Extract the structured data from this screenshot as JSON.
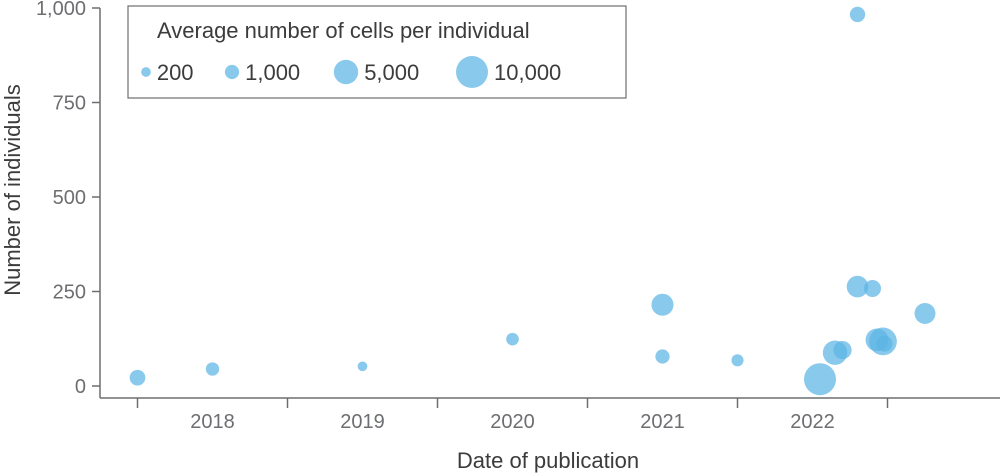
{
  "chart_data": {
    "type": "scatter",
    "title": "",
    "xlabel": "Date of publication",
    "ylabel": "Number of individuals",
    "xlim": [
      2017.25,
      2023.25
    ],
    "ylim": [
      0,
      1000
    ],
    "x_ticks": [
      "2018",
      "2019",
      "2020",
      "2021",
      "2022"
    ],
    "y_ticks": [
      "0",
      "250",
      "500",
      "750",
      "1,000"
    ],
    "y_tick_values": [
      0,
      250,
      500,
      750,
      1000
    ],
    "grid": false,
    "legend": {
      "title": "Average number of cells per individual",
      "placement": "top-left",
      "entries": [
        {
          "label": "200",
          "size": 200
        },
        {
          "label": "1,000",
          "size": 1000
        },
        {
          "label": "5,000",
          "size": 5000
        },
        {
          "label": "10,000",
          "size": 10000
        }
      ]
    },
    "color": "#5bb4e5",
    "points": [
      {
        "x": 2017.5,
        "y": 22,
        "size": 1400
      },
      {
        "x": 2018.0,
        "y": 45,
        "size": 800
      },
      {
        "x": 2019.0,
        "y": 52,
        "size": 200
      },
      {
        "x": 2020.0,
        "y": 124,
        "size": 650
      },
      {
        "x": 2021.0,
        "y": 215,
        "size": 3800
      },
      {
        "x": 2021.0,
        "y": 78,
        "size": 1000
      },
      {
        "x": 2021.5,
        "y": 68,
        "size": 550
      },
      {
        "x": 2022.05,
        "y": 18,
        "size": 10000
      },
      {
        "x": 2022.15,
        "y": 88,
        "size": 5000
      },
      {
        "x": 2022.2,
        "y": 95,
        "size": 2200
      },
      {
        "x": 2022.3,
        "y": 983,
        "size": 1300
      },
      {
        "x": 2022.3,
        "y": 263,
        "size": 3600
      },
      {
        "x": 2022.4,
        "y": 258,
        "size": 1800
      },
      {
        "x": 2022.43,
        "y": 122,
        "size": 4200
      },
      {
        "x": 2022.47,
        "y": 118,
        "size": 7000
      },
      {
        "x": 2022.48,
        "y": 112,
        "size": 1500
      },
      {
        "x": 2022.75,
        "y": 192,
        "size": 3300
      }
    ]
  }
}
